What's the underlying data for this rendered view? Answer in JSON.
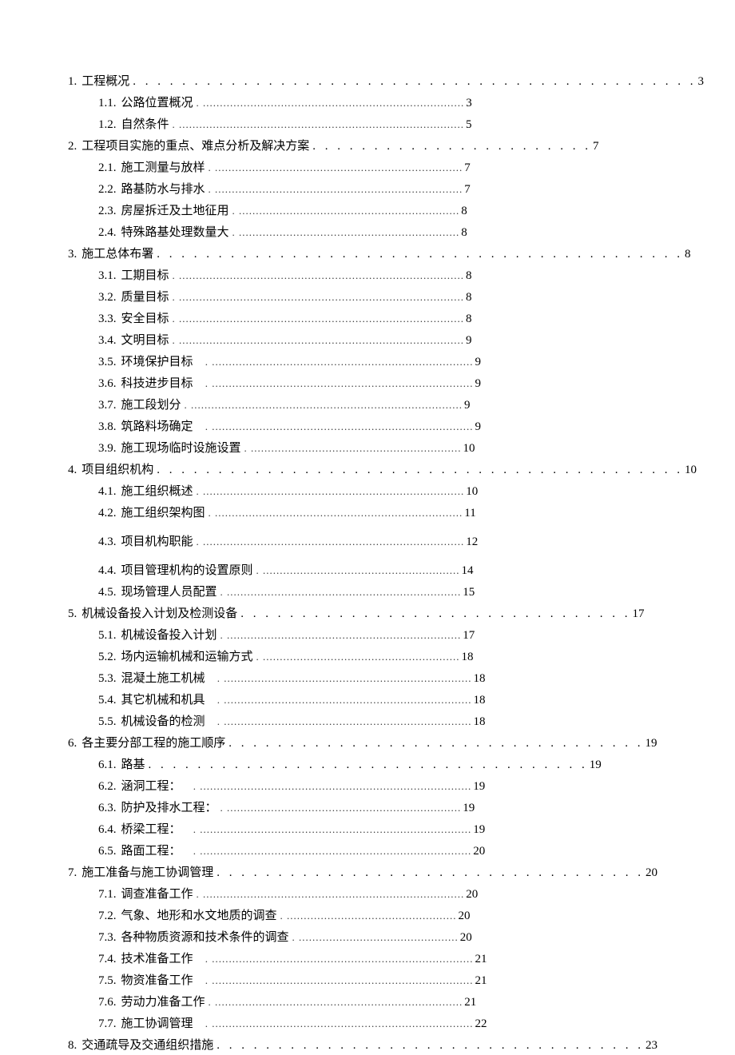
{
  "toc": [
    {
      "level": 1,
      "num": "1.",
      "text": "工程概况",
      "page": "3",
      "dotStyle": "large"
    },
    {
      "level": 2,
      "num": "1.1.",
      "text": "公路位置概况",
      "page": "3",
      "dotStyle": "small"
    },
    {
      "level": 2,
      "num": "1.2.",
      "text": "自然条件",
      "page": "5",
      "dotStyle": "small"
    },
    {
      "level": 1,
      "num": "2.",
      "text": "工程项目实施的重点、难点分析及解决方案",
      "page": "7",
      "dotStyle": "large"
    },
    {
      "level": 2,
      "num": "2.1.",
      "text": "施工测量与放样",
      "page": "7",
      "dotStyle": "small"
    },
    {
      "level": 2,
      "num": "2.2.",
      "text": "路基防水与排水",
      "page": "7",
      "dotStyle": "small"
    },
    {
      "level": 2,
      "num": "2.3.",
      "text": "房屋拆迁及土地征用",
      "page": "8",
      "dotStyle": "small"
    },
    {
      "level": 2,
      "num": "2.4.",
      "text": "特殊路基处理数量大",
      "page": "8",
      "dotStyle": "small"
    },
    {
      "level": 1,
      "num": "3.",
      "text": "施工总体布署",
      "page": "8",
      "dotStyle": "large"
    },
    {
      "level": 2,
      "num": "3.1.",
      "text": "工期目标",
      "page": "8",
      "dotStyle": "small"
    },
    {
      "level": 2,
      "num": "3.2.",
      "text": "质量目标",
      "page": "8",
      "dotStyle": "small"
    },
    {
      "level": 2,
      "num": "3.3.",
      "text": "安全目标",
      "page": "8",
      "dotStyle": "small"
    },
    {
      "level": 2,
      "num": "3.4.",
      "text": "文明目标",
      "page": "9",
      "dotStyle": "small"
    },
    {
      "level": 2,
      "num": "3.5.",
      "text": "环境保护目标",
      "page": "9",
      "dotStyle": "small",
      "extraSpace": true
    },
    {
      "level": 2,
      "num": "3.6.",
      "text": "科技进步目标",
      "page": "9",
      "dotStyle": "small",
      "extraSpace": true
    },
    {
      "level": 2,
      "num": "3.7.",
      "text": "施工段划分",
      "page": "9",
      "dotStyle": "small"
    },
    {
      "level": 2,
      "num": "3.8.",
      "text": "筑路料场确定",
      "page": "9",
      "dotStyle": "small",
      "extraSpace": true
    },
    {
      "level": 2,
      "num": "3.9.",
      "text": "施工现场临时设施设置",
      "page": "10",
      "dotStyle": "small"
    },
    {
      "level": 1,
      "num": "4.",
      "text": "项目组织机构",
      "page": "10",
      "dotStyle": "large"
    },
    {
      "level": 2,
      "num": "4.1.",
      "text": "施工组织概述",
      "page": "10",
      "dotStyle": "small"
    },
    {
      "level": 2,
      "num": "4.2.",
      "text": "施工组织架构图",
      "page": "11",
      "dotStyle": "small"
    },
    {
      "level": 2,
      "num": "4.3.",
      "text": "项目机构职能",
      "page": "12",
      "dotStyle": "small",
      "gapBefore": true
    },
    {
      "level": 2,
      "num": "4.4.",
      "text": "项目管理机构的设置原则",
      "page": "14",
      "dotStyle": "small",
      "gapBefore": true
    },
    {
      "level": 2,
      "num": "4.5.",
      "text": "现场管理人员配置",
      "page": "15",
      "dotStyle": "small"
    },
    {
      "level": 1,
      "num": "5.",
      "text": "机械设备投入计划及检测设备",
      "page": "17",
      "dotStyle": "large"
    },
    {
      "level": 2,
      "num": "5.1.",
      "text": "机械设备投入计划",
      "page": "17",
      "dotStyle": "small"
    },
    {
      "level": 2,
      "num": "5.2.",
      "text": "场内运输机械和运输方式",
      "page": "18",
      "dotStyle": "small"
    },
    {
      "level": 2,
      "num": "5.3.",
      "text": "混凝土施工机械",
      "page": "18",
      "dotStyle": "small",
      "extraSpace": true
    },
    {
      "level": 2,
      "num": "5.4.",
      "text": "其它机械和机具",
      "page": "18",
      "dotStyle": "small",
      "extraSpace": true
    },
    {
      "level": 2,
      "num": "5.5.",
      "text": "机械设备的检测",
      "page": "18",
      "dotStyle": "small",
      "extraSpace": true
    },
    {
      "level": 1,
      "num": "6.",
      "text": "各主要分部工程的施工顺序",
      "page": "19",
      "dotStyle": "large"
    },
    {
      "level": 2,
      "num": "6.1.",
      "text": "路基",
      "page": "19",
      "dotStyle": "large"
    },
    {
      "level": 2,
      "num": "6.2.",
      "text": "涵洞工程：",
      "page": "19",
      "dotStyle": "small",
      "extraSpace": true
    },
    {
      "level": 2,
      "num": "6.3.",
      "text": "防护及排水工程：",
      "page": "19",
      "dotStyle": "small"
    },
    {
      "level": 2,
      "num": "6.4.",
      "text": "桥梁工程：",
      "page": "19",
      "dotStyle": "small",
      "extraSpace": true
    },
    {
      "level": 2,
      "num": "6.5.",
      "text": "路面工程：",
      "page": "20",
      "dotStyle": "small",
      "extraSpace": true
    },
    {
      "level": 1,
      "num": "7.",
      "text": "施工准备与施工协调管理",
      "page": "20",
      "dotStyle": "large"
    },
    {
      "level": 2,
      "num": "7.1.",
      "text": "调查准备工作",
      "page": "20",
      "dotStyle": "small"
    },
    {
      "level": 2,
      "num": "7.2.",
      "text": "气象、地形和水文地质的调查",
      "page": "20",
      "dotStyle": "small"
    },
    {
      "level": 2,
      "num": "7.3.",
      "text": "各种物质资源和技术条件的调查",
      "page": "20",
      "dotStyle": "small"
    },
    {
      "level": 2,
      "num": "7.4.",
      "text": "技术准备工作",
      "page": "21",
      "dotStyle": "small",
      "extraSpace": true
    },
    {
      "level": 2,
      "num": "7.5.",
      "text": "物资准备工作",
      "page": "21",
      "dotStyle": "small",
      "extraSpace": true
    },
    {
      "level": 2,
      "num": "7.6.",
      "text": "劳动力准备工作",
      "page": "21",
      "dotStyle": "small"
    },
    {
      "level": 2,
      "num": "7.7.",
      "text": "施工协调管理",
      "page": "22",
      "dotStyle": "small",
      "extraSpace": true
    },
    {
      "level": 1,
      "num": "8.",
      "text": "交通疏导及交通组织措施",
      "page": "23",
      "dotStyle": "large"
    }
  ],
  "styling": {
    "dotsSmallChar": ".",
    "dotsLargeChar": ".",
    "fontSize": 15,
    "textColor": "#000000",
    "bgColor": "#ffffff"
  }
}
